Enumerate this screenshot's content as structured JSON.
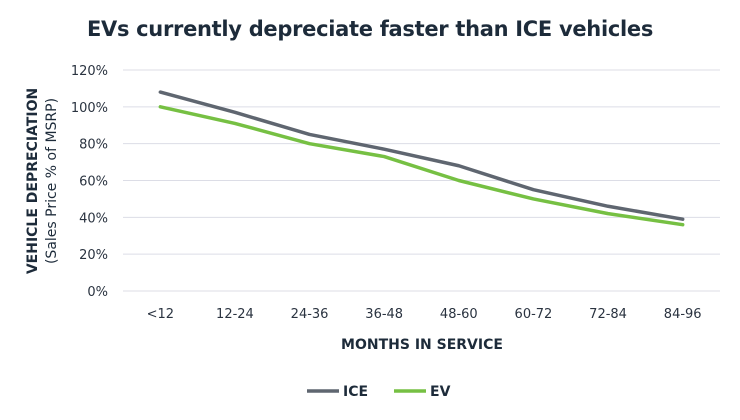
{
  "chart_data": {
    "type": "line",
    "title": "EVs currently depreciate faster than ICE vehicles",
    "xlabel": "MONTHS IN SERVICE",
    "ylabel": "VEHICLE DEPRECIATION",
    "ylabel_sub": "(Sales Price % of MSRP)",
    "categories": [
      "<12",
      "12-24",
      "24-36",
      "36-48",
      "48-60",
      "60-72",
      "72-84",
      "84-96"
    ],
    "ylim": [
      0,
      120
    ],
    "yticks": [
      0,
      20,
      40,
      60,
      80,
      100,
      120
    ],
    "ytick_labels": [
      "0%",
      "20%",
      "40%",
      "60%",
      "80%",
      "100%",
      "120%"
    ],
    "grid": true,
    "legend_position": "bottom",
    "series": [
      {
        "name": "ICE",
        "color": "#5f6670",
        "values": [
          108,
          97,
          85,
          77,
          68,
          55,
          46,
          39
        ]
      },
      {
        "name": "EV",
        "color": "#76c043",
        "values": [
          100,
          91,
          80,
          73,
          60,
          50,
          42,
          36
        ]
      }
    ]
  }
}
